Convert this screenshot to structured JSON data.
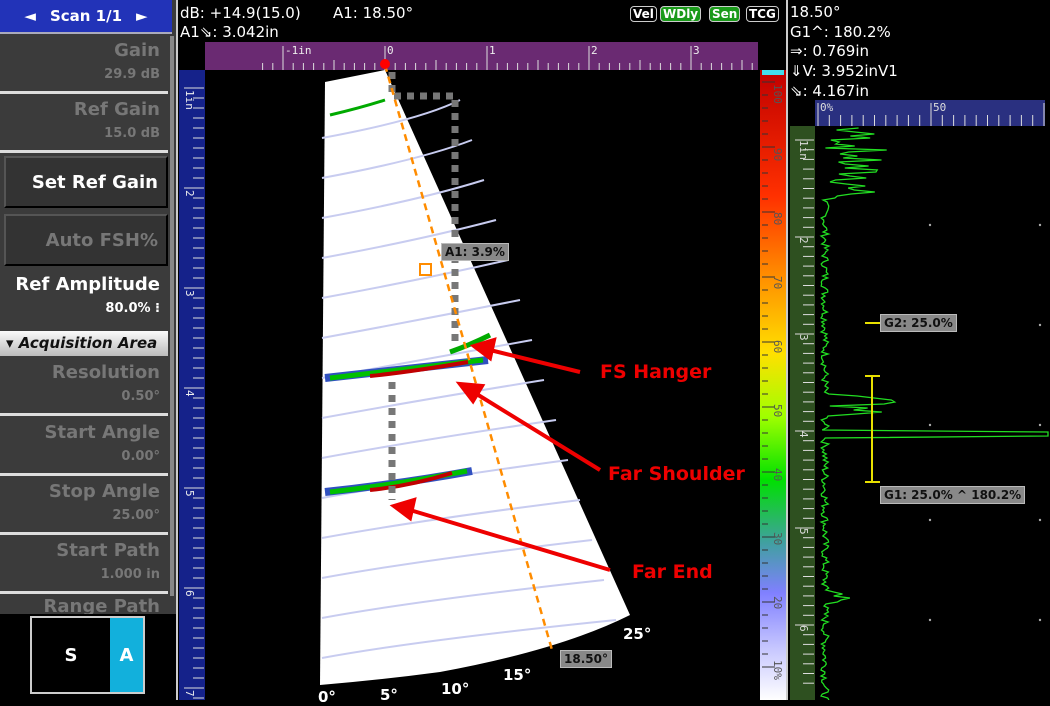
{
  "left_panel": {
    "scan_label": "Scan 1/1",
    "params": [
      {
        "name": "Gain",
        "value": "29.9 dB"
      },
      {
        "name": "Ref Gain",
        "value": "15.0 dB"
      }
    ],
    "set_ref_gain": "Set Ref Gain",
    "auto_fsh": "Auto FSH%",
    "ref_amplitude": {
      "name": "Ref Amplitude",
      "value": "80.0%"
    },
    "section": "Acquisition Area",
    "acq_params": [
      {
        "name": "Resolution",
        "value": "0.50°"
      },
      {
        "name": "Start Angle",
        "value": "0.00°"
      },
      {
        "name": "Stop Angle",
        "value": "25.00°"
      },
      {
        "name": "Start Path",
        "value": "1.000 in"
      },
      {
        "name": "Range Path",
        "value": ""
      }
    ],
    "view_s": "S",
    "view_a": "A"
  },
  "readouts": {
    "db": "dB: +14.9(15.0)",
    "a1_angle": "A1: 18.50°",
    "a1_path": "A1⇘: 3.042in",
    "badges": [
      {
        "label": "Vel",
        "on": false
      },
      {
        "label": "WDly",
        "on": true
      },
      {
        "label": "Sen",
        "on": true
      },
      {
        "label": "TCG",
        "on": false
      }
    ],
    "right": [
      "18.50°",
      "G1^: 180.2%",
      "⇒: 0.769in",
      "⇓V: 3.952inV1",
      "⇘: 4.167in"
    ]
  },
  "sscan": {
    "h_ruler": [
      "-1in",
      "0",
      "1",
      "2",
      "3"
    ],
    "v_ruler": [
      "1in",
      "2",
      "3",
      "4",
      "5",
      "6",
      "7"
    ],
    "color_scale": [
      "100",
      "90",
      "80",
      "70",
      "60",
      "50",
      "40",
      "30",
      "20",
      "10%"
    ],
    "cursor_amp": "A1: 3.9%",
    "cursor_angle": "18.50°",
    "angles": [
      "0°",
      "5°",
      "10°",
      "15°",
      "25°"
    ],
    "annotations": [
      "FS Hanger",
      "Far Shoulder",
      "Far End"
    ],
    "colors": {
      "annotation": "#e00000",
      "cursor": "#ff8c00",
      "palette_top": "#c00000"
    }
  },
  "ascan": {
    "h_ruler": [
      "0%",
      "50"
    ],
    "v_ruler": [
      "1in",
      "2",
      "3",
      "4",
      "5",
      "6"
    ],
    "gate2": "G2: 25.0%",
    "gate1": "G1: 25.0% ^ 180.2%",
    "colors": {
      "trace": "#22dd22",
      "gate": "#e8e000"
    }
  }
}
